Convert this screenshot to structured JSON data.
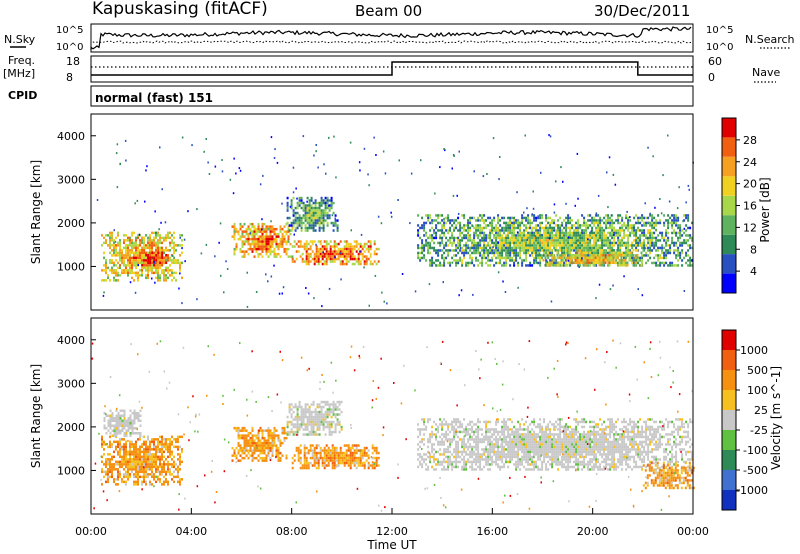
{
  "header": {
    "station": "Kapuskasing (fitACF)",
    "beam": "Beam 00",
    "date": "30/Dec/2011"
  },
  "top_panels": {
    "nsky_label": "N.Sky",
    "nsky_ticks": [
      "10^5",
      "10^0"
    ],
    "nsearch_label": "N.Search",
    "nsearch_ticks": [
      "10^5",
      "10^0"
    ],
    "freq_label": "Freq.",
    "freq_unit": "[MHz]",
    "freq_ticks": [
      "18",
      "8"
    ],
    "nave_label": "Nave",
    "nave_ticks": [
      "60",
      "0"
    ],
    "cpid_label": "CPID",
    "cpid_value": "normal (fast) 151"
  },
  "chart_data": [
    {
      "type": "heatmap",
      "name": "power",
      "ylabel": "Slant Range [km]",
      "ylim": [
        0,
        4500
      ],
      "yticks": [
        "4000",
        "3000",
        "2000",
        "1000"
      ],
      "xlim": [
        0,
        24
      ],
      "colorbar_label": "Power [dB]",
      "colorbar_ticks": [
        "28",
        "24",
        "20",
        "16",
        "12",
        "8",
        "4"
      ],
      "colors": [
        "#0000ff",
        "#2850c0",
        "#2e8b57",
        "#5fb35f",
        "#a8d84a",
        "#f0d020",
        "#f5a020",
        "#f06010",
        "#e00000"
      ],
      "echo_regions": [
        {
          "t0": 0.4,
          "t1": 3.6,
          "r0": 700,
          "r1": 1800,
          "level": 0.55
        },
        {
          "t0": 2.0,
          "t1": 3.0,
          "r0": 1000,
          "r1": 1400,
          "level": 0.8
        },
        {
          "t0": 5.6,
          "t1": 8.0,
          "r0": 1200,
          "r1": 2000,
          "level": 0.6
        },
        {
          "t0": 8.0,
          "t1": 11.5,
          "r0": 1050,
          "r1": 1600,
          "level": 0.65
        },
        {
          "t0": 7.8,
          "t1": 9.8,
          "r0": 1800,
          "r1": 2600,
          "level": 0.25
        },
        {
          "t0": 13.0,
          "t1": 24.0,
          "r0": 1000,
          "r1": 2200,
          "level": 0.3
        },
        {
          "t0": 18.0,
          "t1": 22.0,
          "r0": 1000,
          "r1": 1400,
          "level": 0.5
        }
      ]
    },
    {
      "type": "heatmap",
      "name": "velocity",
      "ylabel": "Slant Range [km]",
      "ylim": [
        0,
        4500
      ],
      "yticks": [
        "4000",
        "3000",
        "2000",
        "1000"
      ],
      "xlim": [
        0,
        24
      ],
      "xticks": [
        "00:00",
        "04:00",
        "08:00",
        "12:00",
        "16:00",
        "20:00",
        "00:00"
      ],
      "xlabel": "Time UT",
      "colorbar_label": "Velocity [m s^-1]",
      "colorbar_ticks": [
        "1000",
        "500",
        "100",
        "25",
        "-25",
        "-100",
        "-500",
        "-1000"
      ],
      "colors": [
        "#1030c0",
        "#4070d0",
        "#2e8b57",
        "#60c040",
        "#c8c8c8",
        "#f5c020",
        "#f59010",
        "#f06010",
        "#e00000"
      ],
      "echo_regions": [
        {
          "t0": 0.4,
          "t1": 3.6,
          "r0": 700,
          "r1": 1800,
          "kind": "orange"
        },
        {
          "t0": 0.5,
          "t1": 2.0,
          "r0": 1800,
          "r1": 2400,
          "kind": "gray"
        },
        {
          "t0": 5.6,
          "t1": 7.8,
          "r0": 1200,
          "r1": 2000,
          "kind": "orange"
        },
        {
          "t0": 8.0,
          "t1": 11.5,
          "r0": 1050,
          "r1": 1600,
          "kind": "orange"
        },
        {
          "t0": 7.8,
          "t1": 10.0,
          "r0": 1800,
          "r1": 2600,
          "kind": "gray"
        },
        {
          "t0": 13.0,
          "t1": 24.0,
          "r0": 1000,
          "r1": 2200,
          "kind": "gray"
        },
        {
          "t0": 22.0,
          "t1": 24.0,
          "r0": 600,
          "r1": 1200,
          "kind": "orange"
        }
      ]
    }
  ]
}
